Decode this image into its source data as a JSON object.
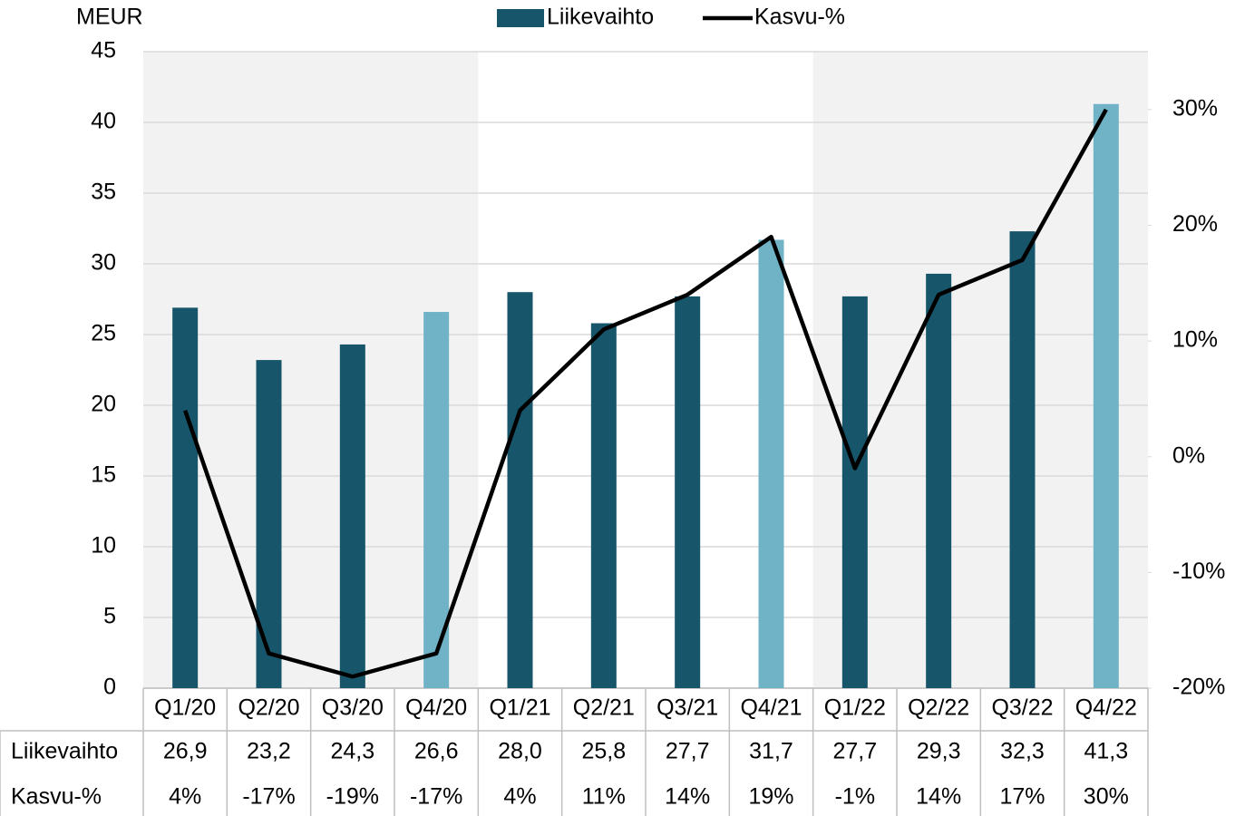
{
  "chart_data": {
    "type": "bar_line",
    "y_label": "MEUR",
    "categories": [
      "Q1/20",
      "Q2/20",
      "Q3/20",
      "Q4/20",
      "Q1/21",
      "Q2/21",
      "Q3/21",
      "Q4/21",
      "Q1/22",
      "Q2/22",
      "Q3/22",
      "Q4/22"
    ],
    "series": [
      {
        "name": "Liikevaihto",
        "type": "bar",
        "color": "#17556a",
        "colors": [
          "#17556a",
          "#17556a",
          "#17556a",
          "#71b3c6",
          "#17556a",
          "#17556a",
          "#17556a",
          "#71b3c6",
          "#17556a",
          "#17556a",
          "#17556a",
          "#71b3c6"
        ],
        "values": [
          26.9,
          23.2,
          24.3,
          26.6,
          28.0,
          25.8,
          27.7,
          31.7,
          27.7,
          29.3,
          32.3,
          41.3
        ],
        "value_labels": [
          "26,9",
          "23,2",
          "24,3",
          "26,6",
          "28,0",
          "25,8",
          "27,7",
          "31,7",
          "27,7",
          "29,3",
          "32,3",
          "41,3"
        ]
      },
      {
        "name": "Kasvu-%",
        "type": "line",
        "axis": "y2",
        "color": "#000000",
        "values": [
          4,
          -17,
          -19,
          -17,
          4,
          11,
          14,
          19,
          -1,
          14,
          17,
          30
        ],
        "value_labels": [
          "4%",
          "-17%",
          "-19%",
          "-17%",
          "4%",
          "11%",
          "14%",
          "19%",
          "-1%",
          "14%",
          "17%",
          "30%"
        ]
      }
    ],
    "ylim": [
      0,
      45
    ],
    "yticks": [
      0,
      5,
      10,
      15,
      20,
      25,
      30,
      35,
      40,
      45
    ],
    "y2lim": [
      -20,
      35
    ],
    "y2ticks": [
      {
        "value": -20,
        "label": "-20%"
      },
      {
        "value": -10,
        "label": "-10%"
      },
      {
        "value": 0,
        "label": "0%"
      },
      {
        "value": 10,
        "label": "10%"
      },
      {
        "value": 20,
        "label": "20%"
      },
      {
        "value": 30,
        "label": "30%"
      }
    ],
    "grid": true,
    "legend": "top"
  }
}
